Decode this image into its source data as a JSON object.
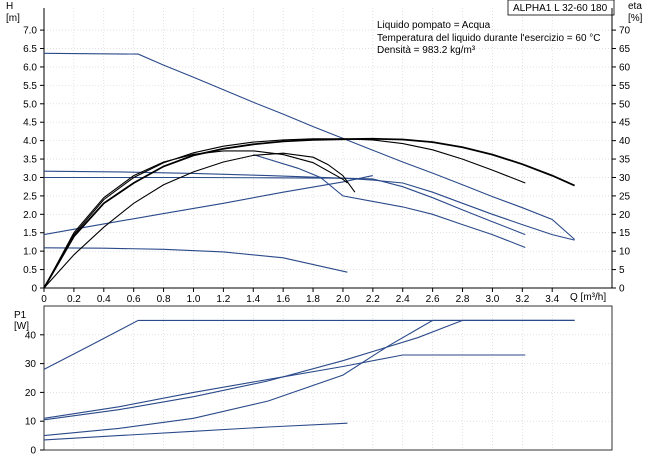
{
  "badge": "ALPHA1 L 32-60 180",
  "info_lines": [
    "Liquido pompato = Acqua",
    "Temperatura del liquido durante l'esercizio = 60 °C",
    "Densità = 983.2 kg/m³"
  ],
  "chart_data": [
    {
      "type": "line",
      "name": "Q-H and efficiency",
      "y_label": "H",
      "y_unit": "[m]",
      "y2_label": "eta",
      "y2_unit": "[%]",
      "x_label": "Q [m³/h]",
      "xlim": [
        0,
        3.8
      ],
      "ylim": [
        0,
        7.6
      ],
      "y2lim": [
        0,
        76
      ],
      "x_ticks": [
        "0",
        "0.2",
        "0.4",
        "0.6",
        "0.8",
        "1.0",
        "1.2",
        "1.4",
        "1.6",
        "1.8",
        "2.0",
        "2.2",
        "2.4",
        "2.6",
        "2.8",
        "3.0",
        "3.2",
        "3.4"
      ],
      "y_ticks": [
        "0",
        "0.5",
        "1.0",
        "1.5",
        "2.0",
        "2.5",
        "3.0",
        "3.5",
        "4.0",
        "4.5",
        "5.0",
        "5.5",
        "6.0",
        "6.5",
        "7.0"
      ],
      "y2_ticks": [
        "0",
        "5",
        "10",
        "15",
        "20",
        "25",
        "30",
        "35",
        "40",
        "45",
        "50",
        "55",
        "60",
        "65",
        "70"
      ],
      "series": [
        {
          "style": "blue",
          "points": [
            [
              0,
              6.37
            ],
            [
              0.63,
              6.35
            ],
            [
              0.8,
              6.05
            ],
            [
              1.0,
              5.72
            ],
            [
              1.2,
              5.38
            ],
            [
              1.4,
              5.04
            ],
            [
              1.6,
              4.72
            ],
            [
              1.8,
              4.38
            ],
            [
              2.0,
              4.06
            ],
            [
              2.2,
              3.74
            ],
            [
              2.4,
              3.42
            ],
            [
              2.6,
              3.12
            ],
            [
              2.8,
              2.8
            ],
            [
              3.0,
              2.48
            ],
            [
              3.2,
              2.18
            ],
            [
              3.4,
              1.86
            ],
            [
              3.55,
              1.32
            ]
          ]
        },
        {
          "style": "blue",
          "points": [
            [
              0,
              3.17
            ],
            [
              0.5,
              3.15
            ],
            [
              1.0,
              3.11
            ],
            [
              1.5,
              3.05
            ],
            [
              2.0,
              2.98
            ],
            [
              2.2,
              2.93
            ],
            [
              2.4,
              2.85
            ],
            [
              2.6,
              2.6
            ],
            [
              2.8,
              2.3
            ],
            [
              3.0,
              2.0
            ],
            [
              3.2,
              1.72
            ],
            [
              3.4,
              1.45
            ],
            [
              3.55,
              1.3
            ]
          ]
        },
        {
          "style": "blue",
          "points": [
            [
              0,
              3.0
            ],
            [
              0.5,
              3.0
            ],
            [
              1.0,
              3.0
            ],
            [
              1.5,
              2.99
            ],
            [
              2.0,
              2.98
            ],
            [
              2.2,
              2.96
            ],
            [
              2.4,
              2.75
            ],
            [
              2.6,
              2.45
            ],
            [
              2.8,
              2.12
            ],
            [
              3.0,
              1.8
            ],
            [
              3.22,
              1.45
            ]
          ]
        },
        {
          "style": "blue",
          "points": [
            [
              0,
              1.45
            ],
            [
              0.4,
              1.74
            ],
            [
              0.8,
              2.02
            ],
            [
              1.2,
              2.3
            ],
            [
              1.6,
              2.6
            ],
            [
              2.0,
              2.88
            ],
            [
              2.2,
              3.05
            ]
          ]
        },
        {
          "style": "blue",
          "points": [
            [
              0,
              1.09
            ],
            [
              0.4,
              1.08
            ],
            [
              0.8,
              1.05
            ],
            [
              1.2,
              0.98
            ],
            [
              1.6,
              0.82
            ],
            [
              2.03,
              0.43
            ]
          ]
        },
        {
          "style": "blue",
          "points": [
            [
              1.4,
              3.62
            ],
            [
              1.7,
              3.25
            ],
            [
              1.85,
              3.0
            ],
            [
              2.0,
              2.5
            ],
            [
              2.2,
              2.35
            ],
            [
              2.4,
              2.2
            ],
            [
              2.6,
              2.0
            ],
            [
              2.8,
              1.72
            ],
            [
              3.0,
              1.45
            ],
            [
              3.22,
              1.1
            ]
          ]
        },
        {
          "style": "black-bold",
          "points": [
            [
              0,
              0
            ],
            [
              0.2,
              1.4
            ],
            [
              0.4,
              2.3
            ],
            [
              0.6,
              2.85
            ],
            [
              0.8,
              3.3
            ],
            [
              1.0,
              3.6
            ],
            [
              1.2,
              3.78
            ],
            [
              1.4,
              3.9
            ],
            [
              1.6,
              3.98
            ],
            [
              1.8,
              4.02
            ],
            [
              2.0,
              4.04
            ],
            [
              2.2,
              4.05
            ],
            [
              2.4,
              4.03
            ],
            [
              2.6,
              3.96
            ],
            [
              2.8,
              3.82
            ],
            [
              3.0,
              3.62
            ],
            [
              3.2,
              3.36
            ],
            [
              3.4,
              3.05
            ],
            [
              3.55,
              2.78
            ]
          ]
        },
        {
          "style": "black",
          "points": [
            [
              0,
              0
            ],
            [
              0.2,
              1.45
            ],
            [
              0.4,
              2.4
            ],
            [
              0.6,
              3.0
            ],
            [
              0.8,
              3.4
            ],
            [
              1.0,
              3.67
            ],
            [
              1.2,
              3.85
            ],
            [
              1.4,
              3.96
            ],
            [
              1.6,
              4.02
            ],
            [
              1.8,
              4.05
            ],
            [
              2.0,
              4.05
            ],
            [
              2.2,
              4.02
            ],
            [
              2.4,
              3.92
            ],
            [
              2.6,
              3.75
            ],
            [
              2.8,
              3.5
            ],
            [
              3.0,
              3.2
            ],
            [
              3.22,
              2.85
            ]
          ]
        },
        {
          "style": "black",
          "points": [
            [
              0,
              0
            ],
            [
              0.2,
              1.5
            ],
            [
              0.4,
              2.45
            ],
            [
              0.6,
              3.05
            ],
            [
              0.8,
              3.42
            ],
            [
              1.0,
              3.63
            ],
            [
              1.2,
              3.72
            ],
            [
              1.4,
              3.72
            ],
            [
              1.6,
              3.62
            ],
            [
              1.8,
              3.4
            ],
            [
              2.0,
              2.95
            ],
            [
              2.03,
              2.85
            ]
          ]
        },
        {
          "style": "black",
          "points": [
            [
              0,
              0
            ],
            [
              0.2,
              0.9
            ],
            [
              0.4,
              1.65
            ],
            [
              0.6,
              2.3
            ],
            [
              0.8,
              2.8
            ],
            [
              1.0,
              3.15
            ],
            [
              1.2,
              3.42
            ],
            [
              1.4,
              3.6
            ],
            [
              1.6,
              3.66
            ],
            [
              1.8,
              3.55
            ],
            [
              1.9,
              3.35
            ],
            [
              2.0,
              3.05
            ],
            [
              2.08,
              2.6
            ]
          ]
        }
      ]
    },
    {
      "type": "line",
      "name": "Power",
      "y_label": "P1",
      "y_unit": "[W]",
      "xlim": [
        0,
        3.8
      ],
      "ylim": [
        0,
        50
      ],
      "y_ticks": [
        "0",
        "10",
        "20",
        "30",
        "40"
      ],
      "series": [
        {
          "style": "blue",
          "points": [
            [
              0,
              28
            ],
            [
              0.3,
              36
            ],
            [
              0.63,
              45
            ],
            [
              3.55,
              45
            ]
          ]
        },
        {
          "style": "blue",
          "points": [
            [
              0,
              11
            ],
            [
              0.5,
              15
            ],
            [
              1.0,
              20
            ],
            [
              1.5,
              24.5
            ],
            [
              2.0,
              29
            ],
            [
              2.4,
              33
            ],
            [
              3.22,
              33
            ]
          ]
        },
        {
          "style": "blue",
          "points": [
            [
              0,
              10.5
            ],
            [
              0.5,
              14
            ],
            [
              1.0,
              18.5
            ],
            [
              1.5,
              24
            ],
            [
              2.0,
              31
            ],
            [
              2.5,
              39
            ],
            [
              2.8,
              45
            ],
            [
              3.55,
              45
            ]
          ]
        },
        {
          "style": "blue",
          "points": [
            [
              0,
              5
            ],
            [
              0.5,
              7.5
            ],
            [
              1.0,
              11
            ],
            [
              1.5,
              17
            ],
            [
              2.0,
              26
            ],
            [
              2.3,
              36
            ],
            [
              2.5,
              42
            ],
            [
              2.6,
              45
            ],
            [
              3.55,
              45
            ]
          ]
        },
        {
          "style": "blue",
          "points": [
            [
              0,
              3.5
            ],
            [
              0.5,
              5
            ],
            [
              1.0,
              6.5
            ],
            [
              1.5,
              8
            ],
            [
              2.03,
              9.3
            ]
          ]
        }
      ]
    }
  ]
}
